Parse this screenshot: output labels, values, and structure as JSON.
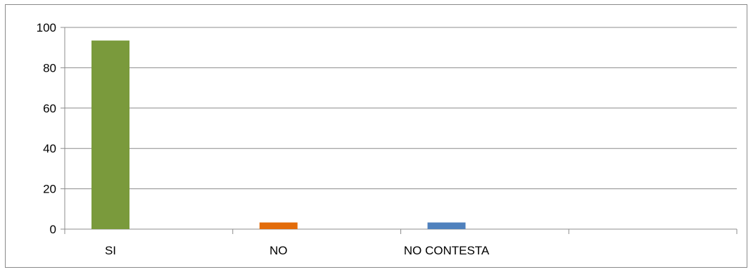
{
  "chart_data": {
    "type": "bar",
    "categories": [
      "SI",
      "NO",
      "NO CONTESTA",
      ""
    ],
    "values": [
      93.5,
      3.3,
      3.3,
      null
    ],
    "colors": [
      "#7a9a3c",
      "#e36c0a",
      "#4f81bd",
      "#4f81bd"
    ],
    "title": "",
    "xlabel": "",
    "ylabel": "",
    "ylim": [
      0,
      100
    ],
    "yticks": [
      0,
      20,
      40,
      60,
      80,
      100
    ],
    "grid": true,
    "legend": "none"
  }
}
